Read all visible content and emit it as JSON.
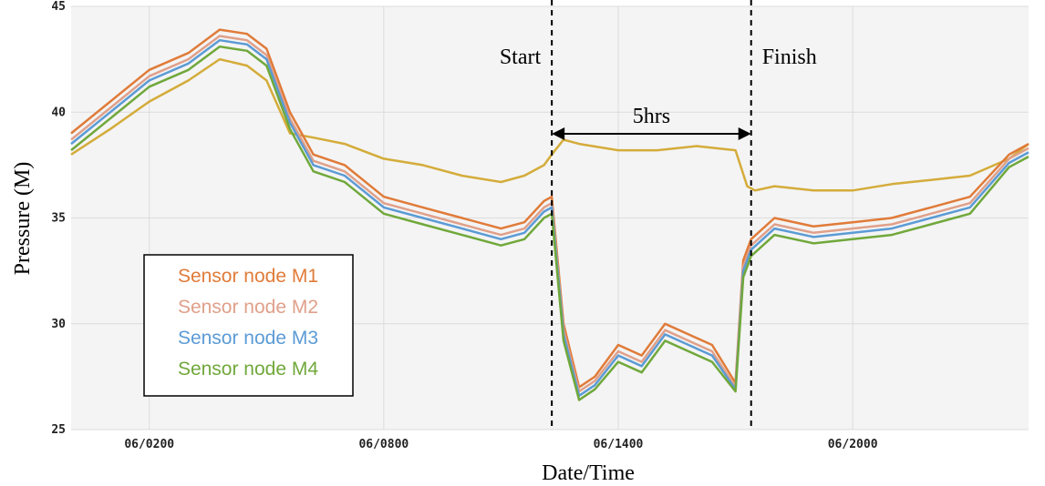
{
  "chart_data": {
    "type": "line",
    "xlabel": "Date/Time",
    "ylabel": "Pressure (M)",
    "xlim": [
      0,
      24.5
    ],
    "ylim": [
      25,
      45
    ],
    "x_ticks": [
      {
        "label": "06/0200",
        "value": 2
      },
      {
        "label": "06/0800",
        "value": 8
      },
      {
        "label": "06/1400",
        "value": 14
      },
      {
        "label": "06/2000",
        "value": 20
      }
    ],
    "y_ticks": [
      25,
      30,
      35,
      40,
      45
    ],
    "grid": true,
    "legend_position": "bottom-left",
    "annotations": {
      "start_label": "Start",
      "finish_label": "Finish",
      "duration_label": "5hrs",
      "start_x": 12.3,
      "finish_x": 17.4
    },
    "series": [
      {
        "name": "Sensor node M1",
        "color": "#e07b39",
        "x": [
          0,
          1,
          2,
          3,
          3.8,
          4.5,
          5,
          5.6,
          6.2,
          7,
          8,
          9,
          10,
          11,
          11.6,
          12.1,
          12.3,
          12.6,
          13,
          13.4,
          14,
          14.6,
          15.2,
          15.8,
          16.4,
          17.0,
          17.2,
          17.4,
          18,
          19,
          20,
          21,
          22,
          23,
          24,
          24.5
        ],
        "y": [
          39.0,
          40.5,
          42.0,
          42.8,
          43.9,
          43.7,
          43.0,
          40.0,
          38.0,
          37.5,
          36.0,
          35.5,
          35.0,
          34.5,
          34.8,
          35.8,
          36.0,
          30.0,
          27.0,
          27.5,
          29.0,
          28.5,
          30.0,
          29.5,
          29.0,
          27.2,
          33.0,
          34.0,
          35.0,
          34.6,
          34.8,
          35.0,
          35.5,
          36.0,
          38.0,
          38.5
        ]
      },
      {
        "name": "Sensor node M2",
        "color": "#e0a08a",
        "x": [
          0,
          1,
          2,
          3,
          3.8,
          4.5,
          5,
          5.6,
          6.2,
          7,
          8,
          9,
          10,
          11,
          11.6,
          12.1,
          12.3,
          12.6,
          13,
          13.4,
          14,
          14.6,
          15.2,
          15.8,
          16.4,
          17.0,
          17.2,
          17.4,
          18,
          19,
          20,
          21,
          22,
          23,
          24,
          24.5
        ],
        "y": [
          38.7,
          40.2,
          41.7,
          42.5,
          43.6,
          43.4,
          42.7,
          39.7,
          37.7,
          37.2,
          35.7,
          35.2,
          34.7,
          34.2,
          34.5,
          35.5,
          35.7,
          29.7,
          26.8,
          27.3,
          28.7,
          28.2,
          29.7,
          29.2,
          28.7,
          27.0,
          32.7,
          33.7,
          34.7,
          34.3,
          34.5,
          34.7,
          35.2,
          35.7,
          37.8,
          38.3
        ]
      },
      {
        "name": "Sensor node M3",
        "color": "#5b9bd5",
        "x": [
          0,
          1,
          2,
          3,
          3.8,
          4.5,
          5,
          5.6,
          6.2,
          7,
          8,
          9,
          10,
          11,
          11.6,
          12.1,
          12.3,
          12.6,
          13,
          13.4,
          14,
          14.6,
          15.2,
          15.8,
          16.4,
          17.0,
          17.2,
          17.4,
          18,
          19,
          20,
          21,
          22,
          23,
          24,
          24.5
        ],
        "y": [
          38.5,
          40.0,
          41.5,
          42.3,
          43.4,
          43.2,
          42.5,
          39.5,
          37.5,
          37.0,
          35.5,
          35.0,
          34.5,
          34.0,
          34.3,
          35.3,
          35.5,
          29.5,
          26.6,
          27.1,
          28.5,
          28.0,
          29.5,
          29.0,
          28.5,
          26.9,
          32.5,
          33.5,
          34.5,
          34.1,
          34.3,
          34.5,
          35.0,
          35.5,
          37.6,
          38.1
        ]
      },
      {
        "name": "Sensor node M4",
        "color": "#70a83b",
        "x": [
          0,
          1,
          2,
          3,
          3.8,
          4.5,
          5,
          5.6,
          6.2,
          7,
          8,
          9,
          10,
          11,
          11.6,
          12.1,
          12.3,
          12.6,
          13,
          13.4,
          14,
          14.6,
          15.2,
          15.8,
          16.4,
          17.0,
          17.2,
          17.4,
          18,
          19,
          20,
          21,
          22,
          23,
          24,
          24.5
        ],
        "y": [
          38.2,
          39.7,
          41.2,
          42.0,
          43.1,
          42.9,
          42.2,
          39.2,
          37.2,
          36.7,
          35.2,
          34.7,
          34.2,
          33.7,
          34.0,
          35.0,
          35.2,
          29.2,
          26.4,
          26.9,
          28.2,
          27.7,
          29.2,
          28.7,
          28.2,
          26.8,
          32.2,
          33.2,
          34.2,
          33.8,
          34.0,
          34.2,
          34.7,
          35.2,
          37.4,
          37.9
        ]
      },
      {
        "name": "",
        "color": "#d4ac3a",
        "x": [
          0,
          1,
          2,
          3,
          3.8,
          4.5,
          5,
          5.6,
          6.2,
          7,
          8,
          9,
          10,
          11,
          11.6,
          12.1,
          12.3,
          12.6,
          13,
          14,
          15,
          16,
          17.0,
          17.3,
          17.5,
          18,
          19,
          20,
          21,
          22,
          23,
          24,
          24.5
        ],
        "y": [
          38.0,
          39.2,
          40.5,
          41.5,
          42.5,
          42.2,
          41.5,
          39.0,
          38.8,
          38.5,
          37.8,
          37.5,
          37.0,
          36.7,
          37.0,
          37.5,
          38.0,
          38.7,
          38.5,
          38.2,
          38.2,
          38.4,
          38.2,
          36.5,
          36.3,
          36.5,
          36.3,
          36.3,
          36.6,
          36.8,
          37.0,
          37.8,
          38.5
        ]
      }
    ]
  }
}
